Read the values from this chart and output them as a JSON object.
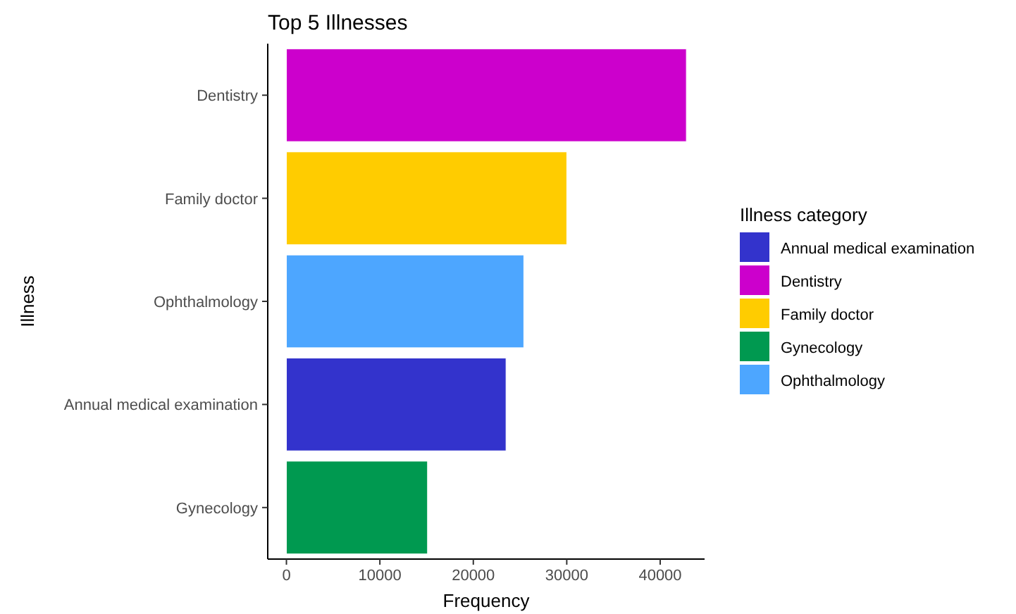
{
  "chart_data": {
    "type": "bar",
    "orientation": "horizontal",
    "title": "Top 5 Illnesses",
    "xlabel": "Frequency",
    "ylabel": "Illness",
    "legend_title": "Illness category",
    "legend": "right",
    "categories": [
      "Dentistry",
      "Family doctor",
      "Ophthalmology",
      "Annual medical examination",
      "Gynecology"
    ],
    "series": [
      {
        "name": "Annual medical examination",
        "color": "#3333cc",
        "values": [
          null,
          null,
          null,
          23500,
          null
        ]
      },
      {
        "name": "Dentistry",
        "color": "#cc00cc",
        "values": [
          42800,
          null,
          null,
          null,
          null
        ]
      },
      {
        "name": "Family doctor",
        "color": "#ffcc00",
        "values": [
          null,
          30000,
          null,
          null,
          null
        ]
      },
      {
        "name": "Gynecology",
        "color": "#009950",
        "values": [
          null,
          null,
          null,
          null,
          15100
        ]
      },
      {
        "name": "Ophthalmology",
        "color": "#4da6ff",
        "values": [
          null,
          null,
          25400,
          null,
          null
        ]
      }
    ],
    "xlim": [
      -2000,
      44750
    ],
    "xticks": [
      0,
      10000,
      20000,
      30000,
      40000
    ],
    "grid": false
  }
}
